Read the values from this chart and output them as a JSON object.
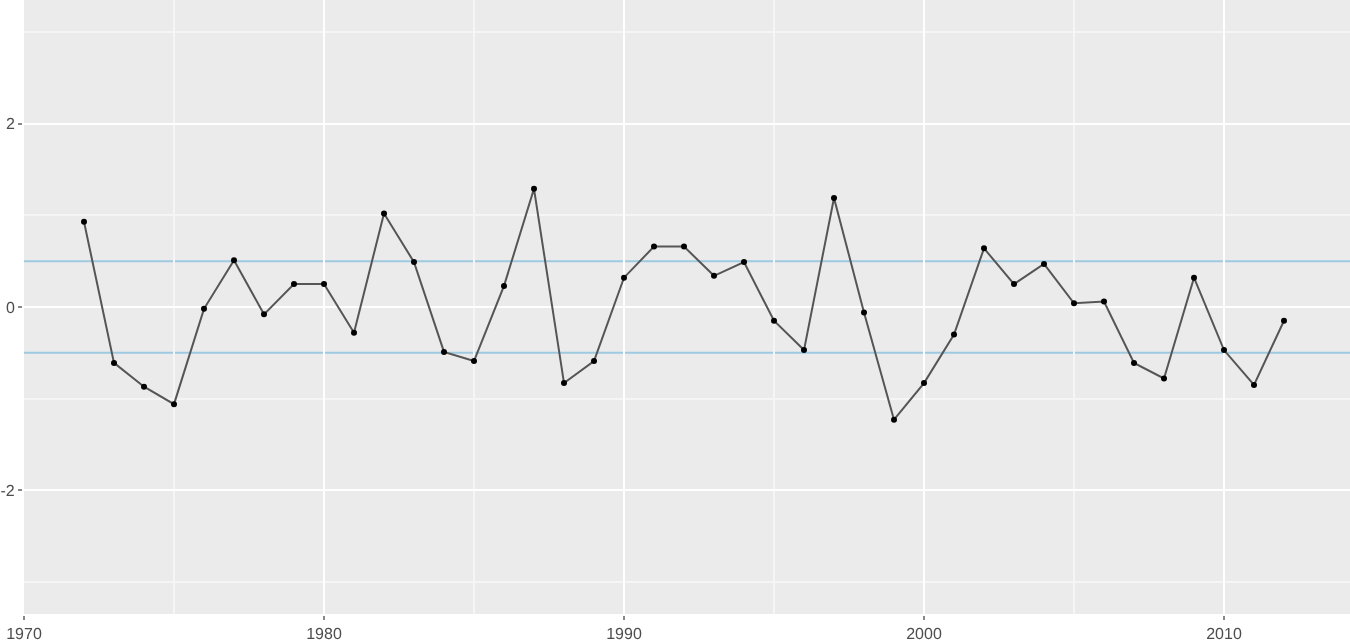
{
  "chart_data": {
    "type": "line",
    "x": [
      1972,
      1973,
      1974,
      1975,
      1976,
      1977,
      1978,
      1979,
      1980,
      1981,
      1982,
      1983,
      1984,
      1985,
      1986,
      1987,
      1988,
      1989,
      1990,
      1991,
      1992,
      1993,
      1994,
      1995,
      1996,
      1997,
      1998,
      1999,
      2000,
      2001,
      2002,
      2003,
      2004,
      2005,
      2006,
      2007,
      2008,
      2009,
      2010,
      2011,
      2012
    ],
    "series": [
      {
        "color": "#555555",
        "values": [
          0.93,
          -0.61,
          -0.87,
          -1.06,
          -0.02,
          0.51,
          -0.08,
          0.25,
          0.25,
          -0.28,
          1.02,
          0.49,
          -0.49,
          -0.59,
          0.23,
          1.29,
          -0.83,
          -0.59,
          0.32,
          0.66,
          0.66,
          0.34,
          0.49,
          -0.15,
          -0.47,
          1.19,
          -0.06,
          -1.23,
          -0.83,
          -0.3,
          0.64,
          0.25,
          0.47,
          0.04,
          0.06,
          -0.61,
          -0.78,
          0.32,
          -0.47,
          -0.85,
          -0.15
        ]
      }
    ],
    "xlim": [
      1970,
      2014.2
    ],
    "xticks": [
      1970,
      1980,
      1990,
      2000,
      2010
    ],
    "ylim": [
      -3.35,
      3.35
    ],
    "yticks": [
      -2,
      0,
      2
    ],
    "ref_lines": [
      {
        "axis": "y",
        "value": 0.5,
        "color": "#9ecae1"
      },
      {
        "axis": "y",
        "value": -0.5,
        "color": "#9ecae1"
      }
    ],
    "grid": true,
    "marker": "circle",
    "line_style": "solid"
  }
}
